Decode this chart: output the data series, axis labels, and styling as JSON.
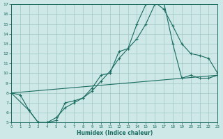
{
  "xlabel": "Humidex (Indice chaleur)",
  "xlim": [
    0,
    23
  ],
  "ylim": [
    5,
    17
  ],
  "xticks": [
    0,
    1,
    2,
    3,
    4,
    5,
    6,
    7,
    8,
    9,
    10,
    11,
    12,
    13,
    14,
    15,
    16,
    17,
    18,
    19,
    20,
    21,
    22,
    23
  ],
  "yticks": [
    5,
    6,
    7,
    8,
    9,
    10,
    11,
    12,
    13,
    14,
    15,
    16,
    17
  ],
  "bg_color": "#cde8e6",
  "grid_color": "#9fc8c4",
  "line_color": "#1a6b60",
  "curve1_x": [
    0,
    1,
    2,
    3,
    4,
    5,
    6,
    7,
    8,
    9,
    10,
    11,
    12,
    13,
    14,
    15,
    16,
    17,
    18,
    19,
    20,
    21,
    22,
    23
  ],
  "curve1_y": [
    8.0,
    7.8,
    6.2,
    5.0,
    5.0,
    5.2,
    7.0,
    7.2,
    7.5,
    8.5,
    9.8,
    10.0,
    12.2,
    12.5,
    15.0,
    17.0,
    17.2,
    16.5,
    14.8,
    13.0,
    12.0,
    11.8,
    11.5,
    10.0
  ],
  "curve2_x": [
    0,
    2,
    3,
    4,
    5,
    6,
    7,
    8,
    9,
    10,
    11,
    12,
    13,
    14,
    15,
    16,
    17,
    18,
    19,
    20,
    21,
    22,
    23
  ],
  "curve2_y": [
    8.0,
    6.2,
    5.0,
    5.0,
    5.5,
    6.5,
    7.0,
    7.5,
    8.2,
    9.2,
    10.2,
    11.5,
    12.5,
    13.5,
    15.0,
    17.0,
    17.2,
    13.0,
    9.5,
    9.8,
    9.5,
    9.5,
    9.8
  ],
  "line_x": [
    0,
    23
  ],
  "line_y": [
    8.0,
    9.8
  ]
}
